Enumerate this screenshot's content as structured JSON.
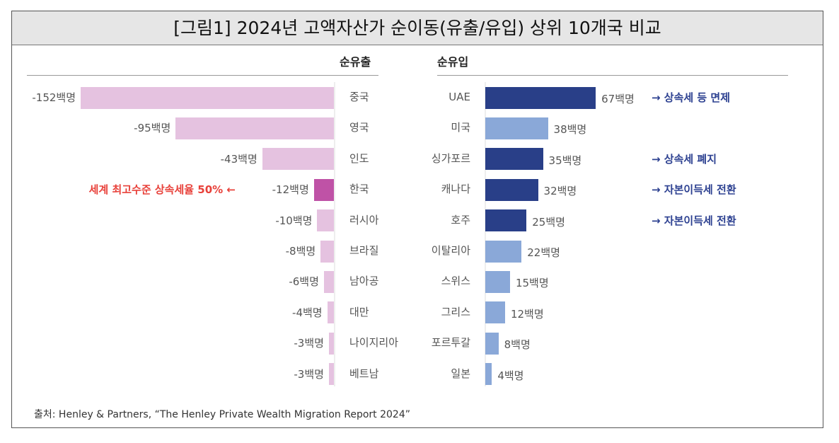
{
  "title": "[그림1] 2024년 고액자산가 순이동(유출/유입) 상위 10개국 비교",
  "source": "출처: Henley & Partners, “The Henley Private Wealth Migration Report 2024”",
  "colors": {
    "outflow": "#e5c2e0",
    "outflow_highlight": "#bf52a6",
    "inflow_dark": "#293f88",
    "inflow_light": "#8aa8d8",
    "note_red": "#e8413a",
    "note_blue": "#2d4191"
  },
  "chart_data": [
    {
      "type": "bar",
      "orientation": "horizontal",
      "title": "순유출",
      "unit": "백명",
      "categories": [
        "중국",
        "영국",
        "인도",
        "한국",
        "러시아",
        "브라질",
        "남아공",
        "대만",
        "나이지리아",
        "베트남"
      ],
      "values": [
        -152,
        -95,
        -43,
        -12,
        -10,
        -8,
        -6,
        -4,
        -3,
        -3
      ],
      "labels": [
        "-152백명",
        "-95백명",
        "-43백명",
        "-12백명",
        "-10백명",
        "-8백명",
        "-6백명",
        "-4백명",
        "-3백명",
        "-3백명"
      ],
      "highlight": "한국",
      "annotations": [
        {
          "category": "한국",
          "text": "세계 최고수준 상속세율 50% ←"
        }
      ]
    },
    {
      "type": "bar",
      "orientation": "horizontal",
      "title": "순유입",
      "unit": "백명",
      "categories": [
        "UAE",
        "미국",
        "싱가포르",
        "캐나다",
        "호주",
        "이탈리아",
        "스위스",
        "그리스",
        "포르투갈",
        "일본"
      ],
      "values": [
        67,
        38,
        35,
        32,
        25,
        22,
        15,
        12,
        8,
        4
      ],
      "labels": [
        "67백명",
        "38백명",
        "35백명",
        "32백명",
        "25백명",
        "22백명",
        "15백명",
        "12백명",
        "8백명",
        "4백명"
      ],
      "dark": [
        "UAE",
        "싱가포르",
        "캐나다",
        "호주"
      ],
      "annotations": [
        {
          "category": "UAE",
          "text": "→ 상속세 등 면제"
        },
        {
          "category": "싱가포르",
          "text": "→ 상속세 폐지"
        },
        {
          "category": "캐나다",
          "text": "→ 자본이득세 전환"
        },
        {
          "category": "호주",
          "text": "→ 자본이득세 전환"
        }
      ]
    }
  ]
}
